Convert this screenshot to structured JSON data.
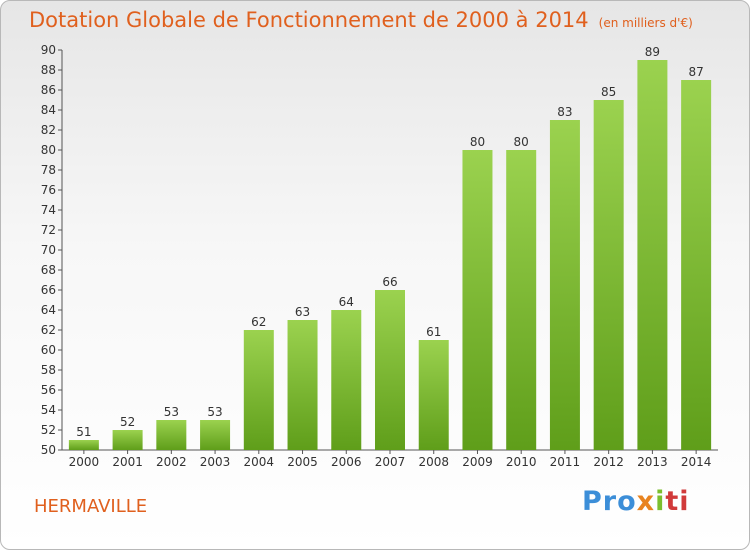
{
  "title": "Dotation Globale de Fonctionnement de 2000 à 2014",
  "unit_note": "(en milliers d'€)",
  "town": "HERMAVILLE",
  "logo": {
    "p1": "Pro",
    "p2": "x",
    "p3": "i",
    "p4": "ti"
  },
  "colors": {
    "accent": "#e0601e",
    "bar_top": "#9bd24f",
    "bar_bottom": "#5f9e1a"
  },
  "chart_data": {
    "type": "bar",
    "categories": [
      "2000",
      "2001",
      "2002",
      "2003",
      "2004",
      "2005",
      "2006",
      "2007",
      "2008",
      "2009",
      "2010",
      "2011",
      "2012",
      "2013",
      "2014"
    ],
    "values": [
      51,
      52,
      53,
      53,
      62,
      63,
      64,
      66,
      61,
      80,
      80,
      83,
      85,
      89,
      87
    ],
    "ylim": [
      50,
      90
    ],
    "ytick_step": 2,
    "grid": false
  }
}
